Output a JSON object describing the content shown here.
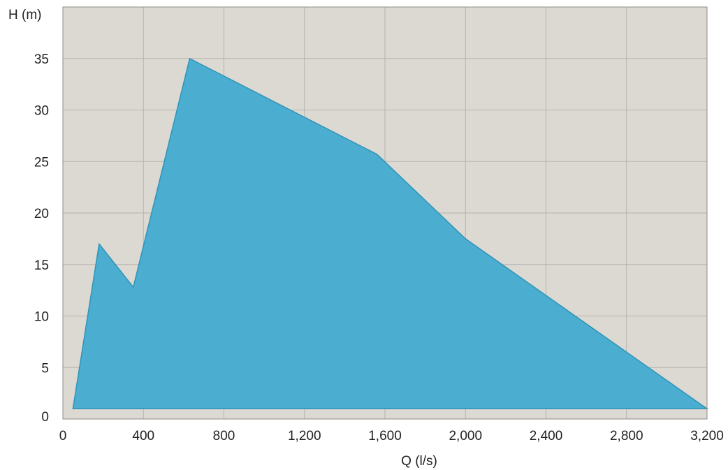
{
  "chart_data": {
    "type": "area",
    "title": "",
    "xlabel": "Q (l/s)",
    "ylabel": "H (m)",
    "xlim": [
      0,
      3200
    ],
    "ylim": [
      0,
      40
    ],
    "x_ticks": [
      0,
      400,
      800,
      1200,
      1600,
      2000,
      2400,
      2800,
      3200
    ],
    "x_tick_labels": [
      "0",
      "400",
      "800",
      "1,200",
      "1,600",
      "2,000",
      "2,400",
      "2,800",
      "3,200"
    ],
    "y_ticks": [
      0,
      5,
      10,
      15,
      20,
      25,
      30,
      35
    ],
    "y_tick_labels": [
      "0",
      "5",
      "10",
      "15",
      "20",
      "25",
      "30",
      "35"
    ],
    "grid": true,
    "legend": "none",
    "series": [
      {
        "x": [
          50,
          180,
          350,
          630,
          1560,
          2000,
          3200,
          50
        ],
        "y": [
          1,
          17,
          12.8,
          35,
          25.7,
          17.5,
          1,
          1
        ]
      }
    ],
    "colors": {
      "plot_background": "#dcd9d3",
      "grid": "#b6b3ae",
      "fill": "#4baed0",
      "fill_edge": "#2f94b8",
      "frame": "#8f8c88"
    }
  }
}
